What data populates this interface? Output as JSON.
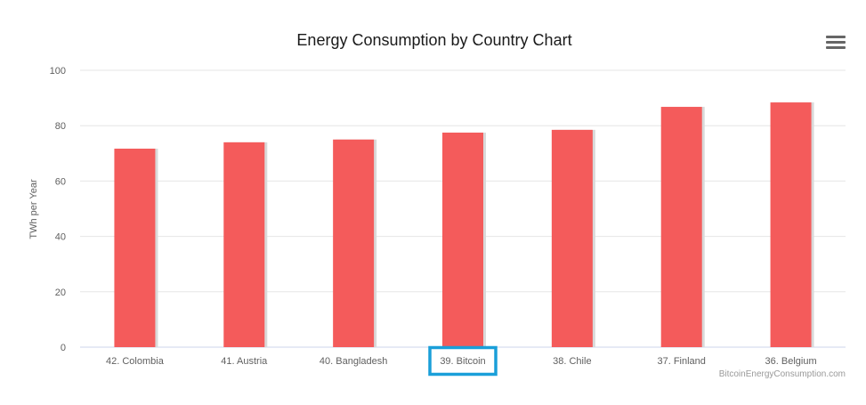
{
  "chart_data": {
    "type": "bar",
    "title": "Energy Consumption by Country Chart",
    "xlabel": "",
    "ylabel": "TWh per Year",
    "ylim": [
      0,
      100
    ],
    "yticks": [
      0,
      20,
      40,
      60,
      80,
      100
    ],
    "grid": true,
    "categories": [
      "42. Colombia",
      "41. Austria",
      "40. Bangladesh",
      "39. Bitcoin",
      "38. Chile",
      "37. Finland",
      "36. Belgium"
    ],
    "series": [
      {
        "values": [
          71.7,
          74.0,
          75.0,
          77.5,
          78.5,
          86.8,
          88.4
        ]
      }
    ],
    "highlighted_category": "39. Bitcoin",
    "credit": "BitcoinEnergyConsumption.com"
  },
  "colors": {
    "bar": "#f45b5b",
    "bar_shadow": "#d9d9d9",
    "highlight_box": "#1a9fd9",
    "gridline": "#e6e6e6",
    "axis_text": "#606060",
    "title_text": "#1a1a1a",
    "credit_text": "#999999"
  },
  "menu": {
    "icon": "hamburger-menu-icon"
  }
}
